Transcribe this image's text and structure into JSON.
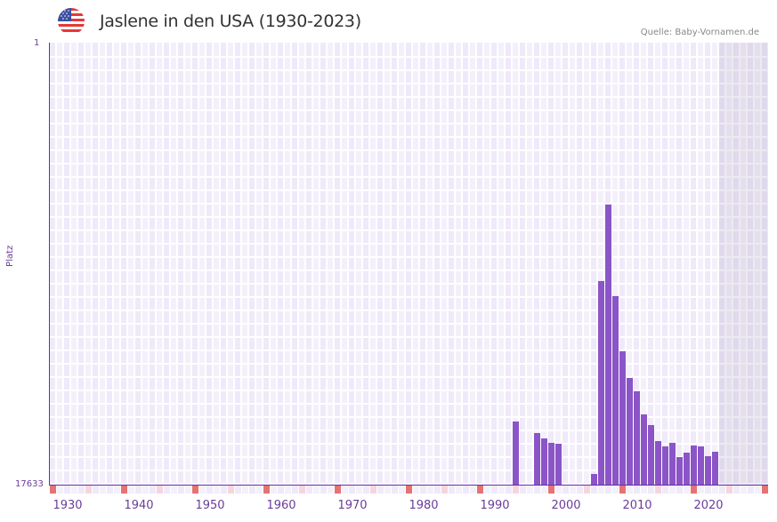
{
  "header": {
    "flag_icon": "usa-flag-icon",
    "title": "Jaslene in den USA (1930-2023)",
    "source": "Quelle: Baby-Vornamen.de"
  },
  "colors": {
    "bar": "#8b55c8",
    "axis": "#6a2ea0",
    "decade_marker": "#e57373",
    "half_decade_marker": "#f5d5de",
    "grid_a": "#efe9f9",
    "grid_b": "#f4f0fb"
  },
  "chart_data": {
    "type": "bar",
    "title": "Jaslene in den USA (1930-2023)",
    "xlabel": "",
    "ylabel": "Platz",
    "y_axis_inverted": true,
    "ylim": [
      17633,
      1
    ],
    "y_ticks": [
      "1",
      "17633"
    ],
    "x_range": [
      1928,
      2028
    ],
    "x_ticks": [
      "1930",
      "1940",
      "1950",
      "1960",
      "1970",
      "1980",
      "1990",
      "2000",
      "2010",
      "2020"
    ],
    "grid": true,
    "legend": null,
    "categories": [
      1993,
      1996,
      1997,
      1998,
      1999,
      2004,
      2005,
      2006,
      2007,
      2008,
      2009,
      2010,
      2011,
      2012,
      2013,
      2014,
      2015,
      2016,
      2017,
      2018,
      2019,
      2020,
      2021
    ],
    "values": [
      15114,
      15575,
      15788,
      15966,
      16001,
      17207,
      9509,
      6458,
      10112,
      12311,
      13375,
      13908,
      14830,
      15256,
      15894,
      16107,
      15966,
      16533,
      16356,
      16072,
      16107,
      16497,
      16320
    ]
  }
}
